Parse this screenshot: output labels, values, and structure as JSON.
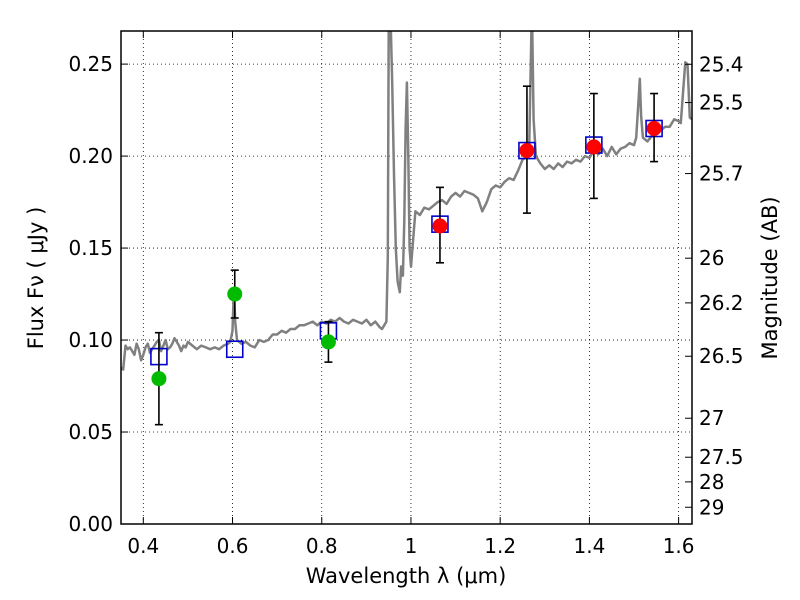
{
  "chart_data": {
    "type": "scatter",
    "xlabel": "Wavelength  λ (μm)",
    "ylabel": "Flux  Fν  ( μJy )",
    "y2label": "Magnitude (AB)",
    "xlim": [
      0.35,
      1.63
    ],
    "ylim": [
      0.0,
      0.268
    ],
    "grid": true,
    "x_ticks": [
      0.4,
      0.6,
      0.8,
      1.0,
      1.2,
      1.4,
      1.6
    ],
    "x_tick_labels": [
      "0.4",
      "0.6",
      "0.8",
      "1",
      "1.2",
      "1.4",
      "1.6"
    ],
    "y_ticks": [
      0.0,
      0.05,
      0.1,
      0.15,
      0.2,
      0.25
    ],
    "y_tick_labels": [
      "0.00",
      "0.05",
      "0.10",
      "0.15",
      "0.20",
      "0.25"
    ],
    "y2_ticks": [
      {
        "label": "25.4",
        "flux": 0.2499
      },
      {
        "label": "25.5",
        "flux": 0.2291
      },
      {
        "label": "25.7",
        "flux": 0.1905
      },
      {
        "label": "26",
        "flux": 0.1445
      },
      {
        "label": "26.2",
        "flux": 0.1202
      },
      {
        "label": "26.5",
        "flux": 0.0912
      },
      {
        "label": "27",
        "flux": 0.0575
      },
      {
        "label": "27.5",
        "flux": 0.0363
      },
      {
        "label": "28",
        "flux": 0.0229
      },
      {
        "label": "29",
        "flux": 0.0091
      }
    ],
    "series": [
      {
        "kind": "line",
        "color": "#808080",
        "points": [
          [
            0.35,
            0.085
          ],
          [
            0.355,
            0.084
          ],
          [
            0.36,
            0.097
          ],
          [
            0.365,
            0.095
          ],
          [
            0.37,
            0.096
          ],
          [
            0.375,
            0.094
          ],
          [
            0.38,
            0.092
          ],
          [
            0.385,
            0.098
          ],
          [
            0.39,
            0.095
          ],
          [
            0.395,
            0.089
          ],
          [
            0.4,
            0.092
          ],
          [
            0.405,
            0.096
          ],
          [
            0.41,
            0.098
          ],
          [
            0.415,
            0.093
          ],
          [
            0.42,
            0.095
          ],
          [
            0.425,
            0.097
          ],
          [
            0.43,
            0.099
          ],
          [
            0.435,
            0.1
          ],
          [
            0.44,
            0.094
          ],
          [
            0.445,
            0.097
          ],
          [
            0.45,
            0.1
          ],
          [
            0.455,
            0.095
          ],
          [
            0.46,
            0.096
          ],
          [
            0.465,
            0.098
          ],
          [
            0.47,
            0.101
          ],
          [
            0.475,
            0.099
          ],
          [
            0.48,
            0.097
          ],
          [
            0.485,
            0.094
          ],
          [
            0.49,
            0.097
          ],
          [
            0.495,
            0.096
          ],
          [
            0.5,
            0.099
          ],
          [
            0.51,
            0.097
          ],
          [
            0.52,
            0.095
          ],
          [
            0.53,
            0.097
          ],
          [
            0.54,
            0.096
          ],
          [
            0.55,
            0.095
          ],
          [
            0.56,
            0.096
          ],
          [
            0.57,
            0.095
          ],
          [
            0.58,
            0.097
          ],
          [
            0.59,
            0.098
          ],
          [
            0.595,
            0.099
          ],
          [
            0.6,
            0.105
          ],
          [
            0.603,
            0.128
          ],
          [
            0.606,
            0.11
          ],
          [
            0.61,
            0.1
          ],
          [
            0.62,
            0.098
          ],
          [
            0.63,
            0.099
          ],
          [
            0.64,
            0.097
          ],
          [
            0.65,
            0.096
          ],
          [
            0.66,
            0.1
          ],
          [
            0.67,
            0.099
          ],
          [
            0.68,
            0.1
          ],
          [
            0.69,
            0.103
          ],
          [
            0.7,
            0.103
          ],
          [
            0.71,
            0.105
          ],
          [
            0.72,
            0.104
          ],
          [
            0.73,
            0.106
          ],
          [
            0.74,
            0.106
          ],
          [
            0.75,
            0.108
          ],
          [
            0.76,
            0.108
          ],
          [
            0.77,
            0.109
          ],
          [
            0.78,
            0.11
          ],
          [
            0.79,
            0.108
          ],
          [
            0.8,
            0.11
          ],
          [
            0.81,
            0.109
          ],
          [
            0.82,
            0.111
          ],
          [
            0.83,
            0.11
          ],
          [
            0.84,
            0.112
          ],
          [
            0.85,
            0.11
          ],
          [
            0.86,
            0.109
          ],
          [
            0.87,
            0.111
          ],
          [
            0.88,
            0.11
          ],
          [
            0.89,
            0.109
          ],
          [
            0.9,
            0.111
          ],
          [
            0.91,
            0.108
          ],
          [
            0.92,
            0.11
          ],
          [
            0.93,
            0.107
          ],
          [
            0.935,
            0.106
          ],
          [
            0.94,
            0.108
          ],
          [
            0.945,
            0.11
          ],
          [
            0.948,
            0.145
          ],
          [
            0.95,
            0.268
          ],
          [
            0.955,
            0.268
          ],
          [
            0.958,
            0.24
          ],
          [
            0.962,
            0.19
          ],
          [
            0.966,
            0.15
          ],
          [
            0.97,
            0.132
          ],
          [
            0.975,
            0.126
          ],
          [
            0.978,
            0.14
          ],
          [
            0.982,
            0.135
          ],
          [
            0.985,
            0.165
          ],
          [
            0.988,
            0.215
          ],
          [
            0.991,
            0.24
          ],
          [
            0.994,
            0.2
          ],
          [
            0.997,
            0.15
          ],
          [
            1.0,
            0.14
          ],
          [
            1.005,
            0.155
          ],
          [
            1.01,
            0.17
          ],
          [
            1.02,
            0.168
          ],
          [
            1.03,
            0.172
          ],
          [
            1.04,
            0.171
          ],
          [
            1.05,
            0.173
          ],
          [
            1.06,
            0.175
          ],
          [
            1.07,
            0.176
          ],
          [
            1.08,
            0.174
          ],
          [
            1.09,
            0.178
          ],
          [
            1.1,
            0.18
          ],
          [
            1.11,
            0.178
          ],
          [
            1.12,
            0.181
          ],
          [
            1.13,
            0.18
          ],
          [
            1.14,
            0.179
          ],
          [
            1.15,
            0.177
          ],
          [
            1.16,
            0.17
          ],
          [
            1.17,
            0.175
          ],
          [
            1.18,
            0.182
          ],
          [
            1.19,
            0.184
          ],
          [
            1.2,
            0.183
          ],
          [
            1.21,
            0.186
          ],
          [
            1.22,
            0.188
          ],
          [
            1.23,
            0.187
          ],
          [
            1.24,
            0.192
          ],
          [
            1.25,
            0.198
          ],
          [
            1.26,
            0.2
          ],
          [
            1.265,
            0.205
          ],
          [
            1.27,
            0.268
          ],
          [
            1.272,
            0.268
          ],
          [
            1.275,
            0.22
          ],
          [
            1.28,
            0.2
          ],
          [
            1.29,
            0.196
          ],
          [
            1.3,
            0.193
          ],
          [
            1.31,
            0.195
          ],
          [
            1.32,
            0.193
          ],
          [
            1.33,
            0.196
          ],
          [
            1.34,
            0.194
          ],
          [
            1.35,
            0.197
          ],
          [
            1.36,
            0.196
          ],
          [
            1.37,
            0.198
          ],
          [
            1.38,
            0.197
          ],
          [
            1.39,
            0.2
          ],
          [
            1.4,
            0.199
          ],
          [
            1.41,
            0.203
          ],
          [
            1.42,
            0.201
          ],
          [
            1.43,
            0.204
          ],
          [
            1.44,
            0.2
          ],
          [
            1.45,
            0.205
          ],
          [
            1.46,
            0.201
          ],
          [
            1.47,
            0.204
          ],
          [
            1.48,
            0.205
          ],
          [
            1.49,
            0.207
          ],
          [
            1.5,
            0.206
          ],
          [
            1.505,
            0.21
          ],
          [
            1.51,
            0.23
          ],
          [
            1.513,
            0.242
          ],
          [
            1.516,
            0.222
          ],
          [
            1.52,
            0.21
          ],
          [
            1.53,
            0.208
          ],
          [
            1.54,
            0.211
          ],
          [
            1.55,
            0.213
          ],
          [
            1.56,
            0.214
          ],
          [
            1.57,
            0.216
          ],
          [
            1.58,
            0.216
          ],
          [
            1.59,
            0.22
          ],
          [
            1.6,
            0.219
          ],
          [
            1.605,
            0.218
          ],
          [
            1.61,
            0.235
          ],
          [
            1.615,
            0.251
          ],
          [
            1.62,
            0.25
          ],
          [
            1.625,
            0.221
          ],
          [
            1.63,
            0.22
          ]
        ]
      },
      {
        "kind": "markers",
        "marker": "square-open",
        "color": "#0000cc",
        "points": [
          [
            0.435,
            0.091
          ],
          [
            0.605,
            0.095
          ],
          [
            0.815,
            0.105
          ],
          [
            1.065,
            0.163
          ],
          [
            1.26,
            0.203
          ],
          [
            1.41,
            0.206
          ],
          [
            1.545,
            0.215
          ]
        ]
      },
      {
        "kind": "markers",
        "marker": "circle",
        "color": "#00bb00",
        "points": [
          {
            "x": 0.435,
            "y": 0.079,
            "yerr": [
              0.054,
              0.104
            ]
          },
          {
            "x": 0.605,
            "y": 0.125,
            "yerr": [
              0.112,
              0.138
            ]
          },
          {
            "x": 0.815,
            "y": 0.099,
            "yerr": [
              0.088,
              0.11
            ]
          }
        ]
      },
      {
        "kind": "markers",
        "marker": "circle",
        "color": "#ff0000",
        "points": [
          {
            "x": 1.065,
            "y": 0.162,
            "yerr": [
              0.142,
              0.183
            ]
          },
          {
            "x": 1.26,
            "y": 0.203,
            "yerr": [
              0.169,
              0.238
            ]
          },
          {
            "x": 1.41,
            "y": 0.205,
            "yerr": [
              0.177,
              0.234
            ]
          },
          {
            "x": 1.545,
            "y": 0.215,
            "yerr": [
              0.197,
              0.234
            ]
          }
        ]
      }
    ]
  }
}
